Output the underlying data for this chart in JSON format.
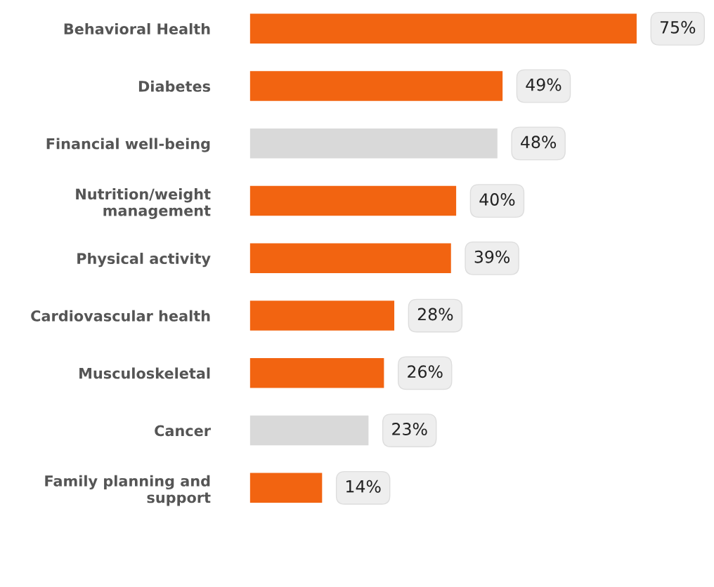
{
  "chart_data": {
    "type": "bar",
    "orientation": "horizontal",
    "categories": [
      "Behavioral Health",
      "Diabetes",
      "Financial well-being",
      "Nutrition/weight\nmanagement",
      "Physical activity",
      "Cardiovascular health",
      "Musculoskeletal",
      "Cancer",
      "Family planning and\nsupport"
    ],
    "values": [
      75,
      49,
      48,
      40,
      39,
      28,
      26,
      23,
      14
    ],
    "colors": [
      "#f26411",
      "#f26411",
      "#d9d9d9",
      "#f26411",
      "#f26411",
      "#f26411",
      "#f26411",
      "#d9d9d9",
      "#f26411"
    ],
    "value_labels": [
      "75%",
      "49%",
      "48%",
      "40%",
      "39%",
      "28%",
      "26%",
      "23%",
      "14%"
    ],
    "grid": false,
    "legend": false
  }
}
